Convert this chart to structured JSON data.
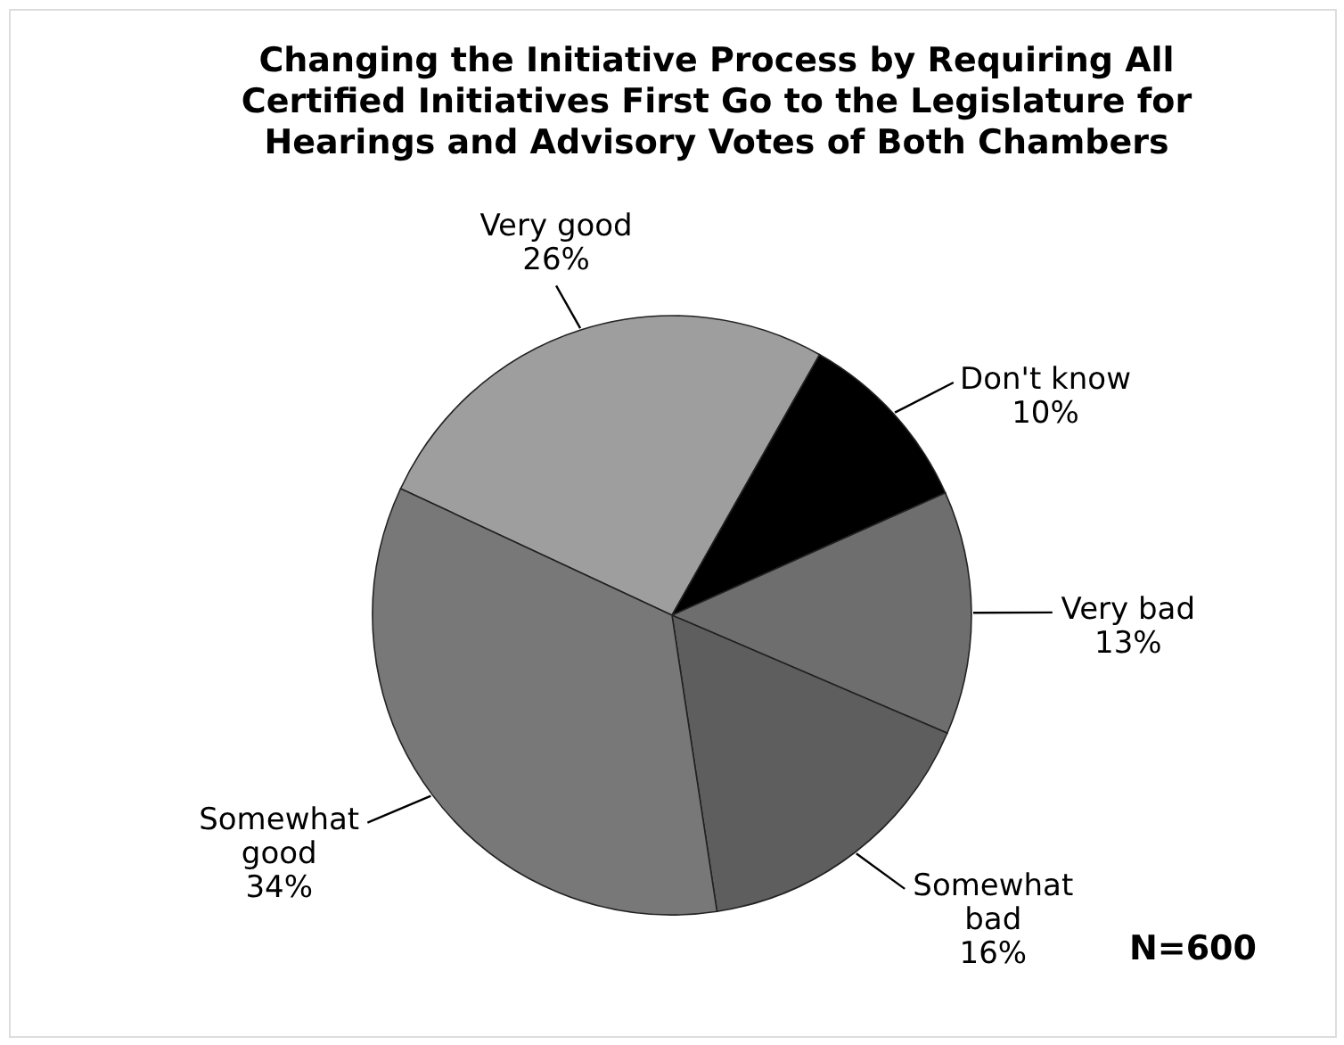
{
  "chart_data": {
    "type": "pie",
    "title": "Changing the Initiative Process by Requiring All Certified Initiatives First Go to the Legislature for Hearings and Advisory Votes of Both Chambers",
    "categories": [
      "Very good",
      "Don't know",
      "Very bad",
      "Somewhat bad",
      "Somewhat good"
    ],
    "values": [
      26,
      10,
      13,
      16,
      34
    ],
    "colors": [
      "#9e9e9e",
      "#000000",
      "#6e6e6e",
      "#5e5e5e",
      "#787878"
    ],
    "value_labels": [
      "26%",
      "10%",
      "13%",
      "16%",
      "34%"
    ],
    "annotations": [
      "N=600"
    ]
  }
}
